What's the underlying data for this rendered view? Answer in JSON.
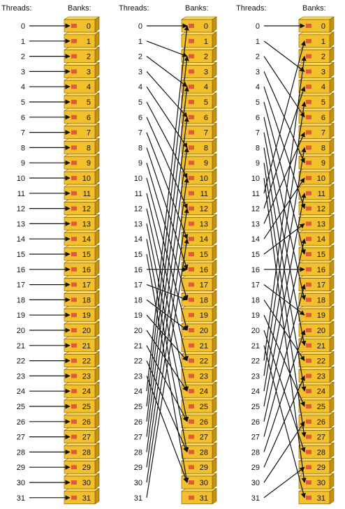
{
  "panels": [
    {
      "header_threads": "Threads:",
      "header_banks": "Banks:",
      "threads": [
        "0",
        "1",
        "2",
        "3",
        "4",
        "5",
        "6",
        "7",
        "8",
        "9",
        "10",
        "11",
        "12",
        "13",
        "14",
        "15",
        "16",
        "17",
        "18",
        "19",
        "20",
        "21",
        "22",
        "23",
        "24",
        "25",
        "26",
        "27",
        "28",
        "29",
        "30",
        "31"
      ],
      "banks": [
        "0",
        "1",
        "2",
        "3",
        "4",
        "5",
        "6",
        "7",
        "8",
        "9",
        "10",
        "11",
        "12",
        "13",
        "14",
        "15",
        "16",
        "17",
        "18",
        "19",
        "20",
        "21",
        "22",
        "23",
        "24",
        "25",
        "26",
        "27",
        "28",
        "29",
        "30",
        "31"
      ],
      "mapping": [
        0,
        1,
        2,
        3,
        4,
        5,
        6,
        7,
        8,
        9,
        10,
        11,
        12,
        13,
        14,
        15,
        16,
        17,
        18,
        19,
        20,
        21,
        22,
        23,
        24,
        25,
        26,
        27,
        28,
        29,
        30,
        31
      ]
    },
    {
      "header_threads": "Threads:",
      "header_banks": "Banks:",
      "threads": [
        "0",
        "1",
        "2",
        "3",
        "4",
        "5",
        "6",
        "7",
        "8",
        "9",
        "10",
        "11",
        "12",
        "13",
        "14",
        "15",
        "16",
        "17",
        "18",
        "19",
        "20",
        "21",
        "22",
        "23",
        "24",
        "25",
        "26",
        "27",
        "28",
        "29",
        "30",
        "31"
      ],
      "banks": [
        "0",
        "1",
        "2",
        "3",
        "4",
        "5",
        "6",
        "7",
        "8",
        "9",
        "10",
        "11",
        "12",
        "13",
        "14",
        "15",
        "16",
        "17",
        "18",
        "19",
        "20",
        "21",
        "22",
        "23",
        "24",
        "25",
        "26",
        "27",
        "28",
        "29",
        "30",
        "31"
      ],
      "mapping": [
        0,
        2,
        4,
        6,
        8,
        10,
        12,
        14,
        16,
        18,
        20,
        22,
        24,
        26,
        28,
        30,
        16,
        18,
        20,
        22,
        24,
        26,
        28,
        30,
        0,
        2,
        4,
        6,
        8,
        10,
        12,
        14
      ]
    },
    {
      "header_threads": "Threads:",
      "header_banks": "Banks:",
      "threads": [
        "0",
        "1",
        "2",
        "3",
        "4",
        "5",
        "6",
        "7",
        "8",
        "9",
        "10",
        "11",
        "12",
        "13",
        "14",
        "15",
        "16",
        "17",
        "18",
        "19",
        "20",
        "21",
        "22",
        "23",
        "24",
        "25",
        "26",
        "27",
        "28",
        "29",
        "30",
        "31"
      ],
      "banks": [
        "0",
        "1",
        "2",
        "3",
        "4",
        "5",
        "6",
        "7",
        "8",
        "9",
        "10",
        "11",
        "12",
        "13",
        "14",
        "15",
        "16",
        "17",
        "18",
        "19",
        "20",
        "21",
        "22",
        "23",
        "24",
        "25",
        "26",
        "27",
        "28",
        "29",
        "30",
        "31"
      ],
      "mapping": [
        0,
        3,
        6,
        9,
        12,
        15,
        18,
        21,
        24,
        27,
        30,
        1,
        4,
        7,
        10,
        13,
        16,
        19,
        22,
        25,
        28,
        31,
        2,
        5,
        8,
        11,
        14,
        17,
        20,
        23,
        26,
        29
      ]
    }
  ],
  "colors": {
    "bank_face": "#f2c02c",
    "bank_side": "#c7900f",
    "bank_top": "#f7d865",
    "bank_border": "#7a5a06",
    "bank_icon": "#e05a3a",
    "arrow": "#111111",
    "text": "#111111"
  }
}
